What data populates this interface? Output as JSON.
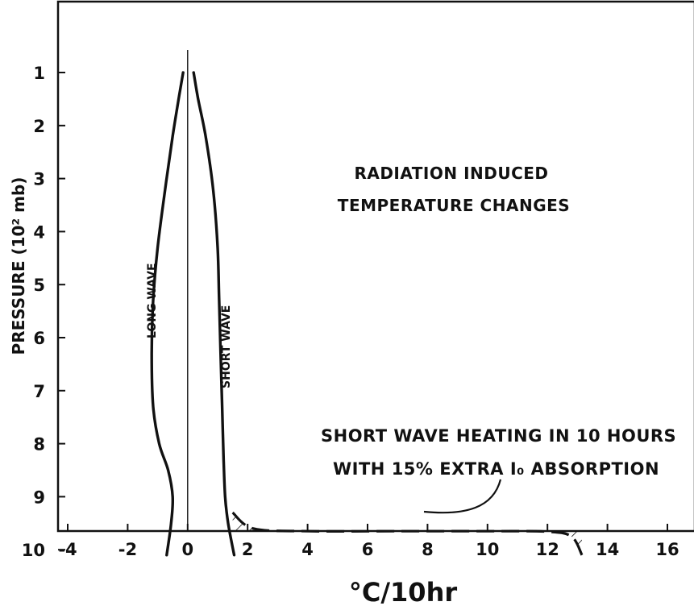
{
  "chart_data": {
    "type": "line",
    "title_lines": [
      "RADIATION  INDUCED",
      "TEMPERATURE  CHANGES"
    ],
    "xlabel": "°C/10hr",
    "ylabel": "PRESSURE (10² mb)",
    "xlim": [
      -4.8,
      19.5
    ],
    "ylim": [
      0.4,
      10.1
    ],
    "y_inverted": true,
    "x_ticks": [
      "-4",
      "-2",
      "0",
      "2",
      "4",
      "6",
      "8",
      "10",
      "12",
      "14",
      "16"
    ],
    "y_ticks": [
      "1",
      "2",
      "3",
      "4",
      "5",
      "6",
      "7",
      "8",
      "9",
      "10"
    ],
    "grid": false,
    "zero_reference_line": true,
    "series": [
      {
        "name": "LONG WAVE",
        "style": "solid",
        "points": [
          [
            -0.15,
            1.0
          ],
          [
            -0.3,
            1.5
          ],
          [
            -0.5,
            2.2
          ],
          [
            -0.75,
            3.2
          ],
          [
            -1.0,
            4.3
          ],
          [
            -1.15,
            5.3
          ],
          [
            -1.2,
            6.3
          ],
          [
            -1.15,
            7.3
          ],
          [
            -0.95,
            8.0
          ],
          [
            -0.65,
            8.5
          ],
          [
            -0.5,
            9.0
          ],
          [
            -0.55,
            9.5
          ],
          [
            -0.7,
            10.1
          ]
        ]
      },
      {
        "name": "SHORT WAVE",
        "style": "solid",
        "points": [
          [
            0.2,
            1.0
          ],
          [
            0.35,
            1.5
          ],
          [
            0.6,
            2.2
          ],
          [
            0.85,
            3.2
          ],
          [
            1.0,
            4.3
          ],
          [
            1.05,
            5.3
          ],
          [
            1.1,
            6.3
          ],
          [
            1.15,
            7.3
          ],
          [
            1.2,
            8.3
          ],
          [
            1.25,
            9.0
          ],
          [
            1.35,
            9.5
          ],
          [
            1.55,
            10.1
          ]
        ]
      },
      {
        "name": "SHORT WAVE HEATING IN 10 HOURS WITH 15% EXTRA I₀ ABSORPTION",
        "style": "dashed",
        "hatched_fill": true,
        "points": [
          [
            1.5,
            9.3
          ],
          [
            2.2,
            9.6
          ],
          [
            4.0,
            9.65
          ],
          [
            7.0,
            9.65
          ],
          [
            10.0,
            9.65
          ],
          [
            12.0,
            9.66
          ],
          [
            12.8,
            9.75
          ],
          [
            13.15,
            10.1
          ]
        ]
      }
    ],
    "annotations": [
      {
        "text_lines": [
          "SHORT WAVE HEATING IN 10 HOURS",
          "WITH 15% EXTRA I₀ ABSORPTION"
        ],
        "arrow_to": [
          8.6,
          9.85
        ]
      }
    ]
  }
}
